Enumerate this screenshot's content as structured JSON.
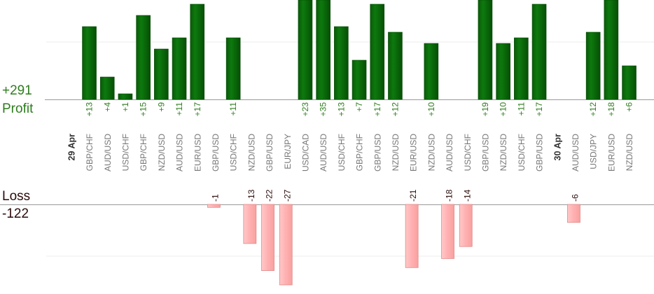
{
  "summary": {
    "profit_total": "+291",
    "profit_label": "Profit",
    "loss_label": "Loss",
    "loss_total": "-122"
  },
  "colors": {
    "profit_bar": "#0b6a0b",
    "profit_text": "#2e7d1e",
    "loss_bar": "#ffb6b6",
    "loss_text": "#2b0a0a",
    "category_text": "#777777",
    "date_text": "#333333"
  },
  "chart_data": {
    "type": "bar",
    "title": "",
    "xlabel": "",
    "ylabel": "",
    "grid": true,
    "categories": [
      {
        "label": "29 Apr",
        "kind": "date"
      },
      {
        "label": "GBP/CHF",
        "profit": 13
      },
      {
        "label": "AUD/USD",
        "profit": 4
      },
      {
        "label": "USD/CHF",
        "profit": 1
      },
      {
        "label": "GBP/CHF",
        "profit": 15
      },
      {
        "label": "NZD/USD",
        "profit": 9
      },
      {
        "label": "AUD/USD",
        "profit": 11
      },
      {
        "label": "EUR/USD",
        "profit": 17
      },
      {
        "label": "GBP/USD",
        "loss": -1
      },
      {
        "label": "USD/CHF",
        "profit": 11
      },
      {
        "label": "NZD/USD",
        "loss": -13
      },
      {
        "label": "GBP/USD",
        "loss": -22
      },
      {
        "label": "EUR/JPY",
        "loss": -27
      },
      {
        "label": "USD/CAD",
        "profit": 23
      },
      {
        "label": "AUD/USD",
        "profit": 35
      },
      {
        "label": "USD/CHF",
        "profit": 13
      },
      {
        "label": "GBP/CHF",
        "profit": 7
      },
      {
        "label": "GBP/USD",
        "profit": 17
      },
      {
        "label": "NZD/USD",
        "profit": 12
      },
      {
        "label": "EUR/USD",
        "loss": -21
      },
      {
        "label": "NZD/USD",
        "profit": 10
      },
      {
        "label": "AUD/USD",
        "loss": -18
      },
      {
        "label": "USD/CHF",
        "loss": -14
      },
      {
        "label": "GBP/USD",
        "profit": 19
      },
      {
        "label": "NZD/USD",
        "profit": 10
      },
      {
        "label": "USD/CHF",
        "profit": 11
      },
      {
        "label": "GBP/USD",
        "profit": 17
      },
      {
        "label": "30 Apr",
        "kind": "date"
      },
      {
        "label": "AUD/USD",
        "loss": -6
      },
      {
        "label": "USD/JPY",
        "profit": 12
      },
      {
        "label": "EUR/USD",
        "profit": 18
      },
      {
        "label": "NZD/USD",
        "profit": 6
      }
    ]
  }
}
